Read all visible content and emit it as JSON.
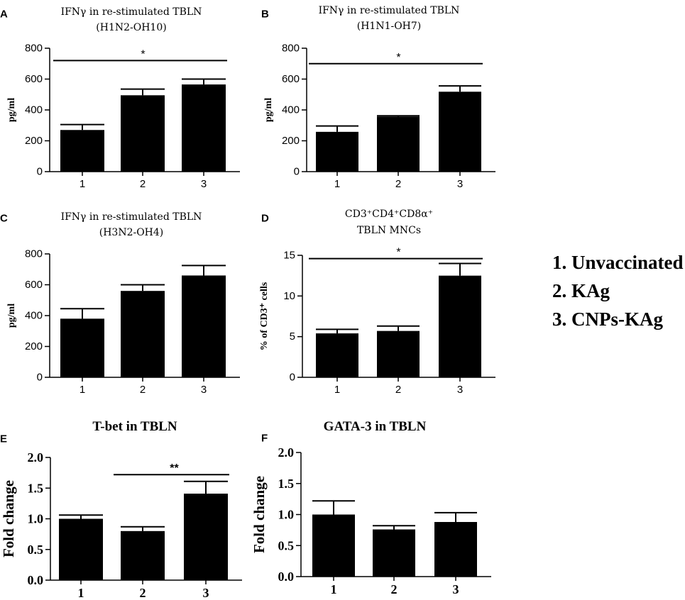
{
  "legend": [
    "1. Unvaccinated",
    "2. KAg",
    "3. CNPs-KAg"
  ],
  "chart_data": [
    {
      "panel": "A",
      "type": "bar",
      "title": [
        "IFNγ in re-stimulated TBLN",
        "(H1N2-OH10)"
      ],
      "ylabel": "pg/ml",
      "xlabel": "",
      "categories": [
        "1",
        "2",
        "3"
      ],
      "values": [
        270,
        495,
        565
      ],
      "errors": [
        35,
        40,
        35
      ],
      "ylim": [
        0,
        800
      ],
      "yticks": [
        0,
        200,
        400,
        600,
        800
      ],
      "ytick_labels": [
        "0",
        "200",
        "400",
        "600",
        "800"
      ],
      "significance": [
        {
          "from": 0,
          "to": 2,
          "level": 720,
          "label": "*"
        }
      ]
    },
    {
      "panel": "B",
      "type": "bar",
      "title": [
        "IFNγ in re-stimulated TBLN",
        "(H1N1-OH7)"
      ],
      "ylabel": "pg/ml",
      "xlabel": "",
      "categories": [
        "1",
        "2",
        "3"
      ],
      "values": [
        258,
        357,
        518
      ],
      "errors": [
        38,
        5,
        38
      ],
      "ylim": [
        0,
        800
      ],
      "yticks": [
        0,
        200,
        400,
        600,
        800
      ],
      "ytick_labels": [
        "0",
        "200",
        "400",
        "600",
        "800"
      ],
      "significance": [
        {
          "from": 0,
          "to": 2,
          "level": 700,
          "label": "*"
        }
      ]
    },
    {
      "panel": "C",
      "type": "bar",
      "title": [
        "IFNγ in re-stimulated TBLN",
        "(H3N2-OH4)"
      ],
      "ylabel": "pg/ml",
      "xlabel": "",
      "categories": [
        "1",
        "2",
        "3"
      ],
      "values": [
        380,
        560,
        660
      ],
      "errors": [
        65,
        40,
        65
      ],
      "ylim": [
        0,
        800
      ],
      "yticks": [
        0,
        200,
        400,
        600,
        800
      ],
      "ytick_labels": [
        "0",
        "200",
        "400",
        "600",
        "800"
      ],
      "significance": []
    },
    {
      "panel": "D",
      "type": "bar",
      "title": [
        "CD3⁺CD4⁺CD8α⁺",
        "TBLN MNCs"
      ],
      "ylabel": "% of CD3⁺ cells",
      "xlabel": "",
      "categories": [
        "1",
        "2",
        "3"
      ],
      "values": [
        5.4,
        5.7,
        12.5
      ],
      "errors": [
        0.5,
        0.6,
        1.5
      ],
      "ylim": [
        0,
        15
      ],
      "yticks": [
        0,
        5,
        10,
        15
      ],
      "ytick_labels": [
        "0",
        "5",
        "10",
        "15"
      ],
      "significance": [
        {
          "from": 0,
          "to": 2,
          "level": 14.6,
          "label": "*"
        }
      ]
    },
    {
      "panel": "E",
      "type": "bar",
      "title": [
        "T-bet in TBLN"
      ],
      "ylabel": "Fold change",
      "xlabel": "",
      "categories": [
        "1",
        "2",
        "3"
      ],
      "values": [
        1.0,
        0.8,
        1.41
      ],
      "errors": [
        0.06,
        0.07,
        0.2
      ],
      "ylim": [
        0,
        2.0
      ],
      "yticks": [
        0,
        0.5,
        1.0,
        1.5,
        2.0
      ],
      "ytick_labels": [
        "0.0",
        "0.5",
        "1.0",
        "1.5",
        "2.0"
      ],
      "significance": [
        {
          "from": 1,
          "to": 2,
          "level": 1.72,
          "label": "**"
        }
      ]
    },
    {
      "panel": "F",
      "type": "bar",
      "title": [
        "GATA-3 in TBLN"
      ],
      "ylabel": "Fold change",
      "xlabel": "",
      "categories": [
        "1",
        "2",
        "3"
      ],
      "values": [
        1.0,
        0.76,
        0.88
      ],
      "errors": [
        0.22,
        0.06,
        0.15
      ],
      "ylim": [
        0,
        2.0
      ],
      "yticks": [
        0,
        0.5,
        1.0,
        1.5,
        2.0
      ],
      "ytick_labels": [
        "0.0",
        "0.5",
        "1.0",
        "1.5",
        "2.0"
      ],
      "significance": []
    }
  ]
}
